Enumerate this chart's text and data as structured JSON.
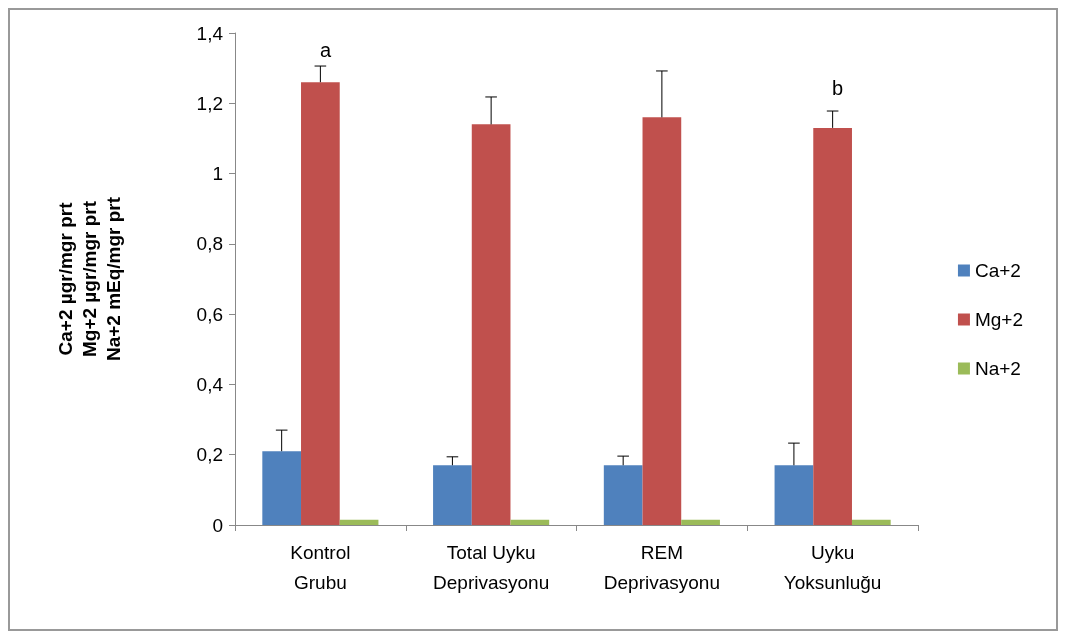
{
  "chart_data": {
    "type": "bar",
    "categories": [
      "Kontrol\nGrubu",
      "Total Uyku\nDeprivasyonu",
      "REM\nDeprivasyonu",
      "Uyku\nYoksunluğu"
    ],
    "ylabel": "Ca+2 µgr/mgr prt\nMg+2 µgr/mgr prt\nNa+2 mEq/mgr prt",
    "series": [
      {
        "name": "Ca+2",
        "color": "#4f81bd",
        "values": [
          0.21,
          0.17,
          0.17,
          0.17
        ],
        "errors": [
          [
            0.21,
            0.27
          ],
          [
            0.17,
            0.194
          ],
          [
            0.17,
            0.196
          ],
          [
            0.17,
            0.233
          ]
        ]
      },
      {
        "name": "Mg+2",
        "color": "#c0504d",
        "values": [
          1.26,
          1.14,
          1.16,
          1.13
        ],
        "errors": [
          [
            1.26,
            1.306
          ],
          [
            1.14,
            1.218
          ],
          [
            1.16,
            1.292
          ],
          [
            1.13,
            1.178
          ]
        ]
      },
      {
        "name": "Na+2",
        "color": "#9bbb59",
        "values": [
          0.015,
          0.015,
          0.015,
          0.015
        ]
      }
    ],
    "ylim": [
      0,
      1.4
    ],
    "yticks": [
      0,
      {
        "value": 0.2,
        "label": "0,2"
      },
      {
        "value": 0.4,
        "label": "0,4"
      },
      {
        "value": 0.6,
        "label": "0,6"
      },
      {
        "value": 0.8,
        "label": "0,8"
      },
      1,
      {
        "value": 1.2,
        "label": "1,2"
      },
      {
        "value": 1.4,
        "label": "1,4"
      }
    ],
    "annotations": [
      "a",
      "b"
    ],
    "legend": "right",
    "grid": false
  }
}
